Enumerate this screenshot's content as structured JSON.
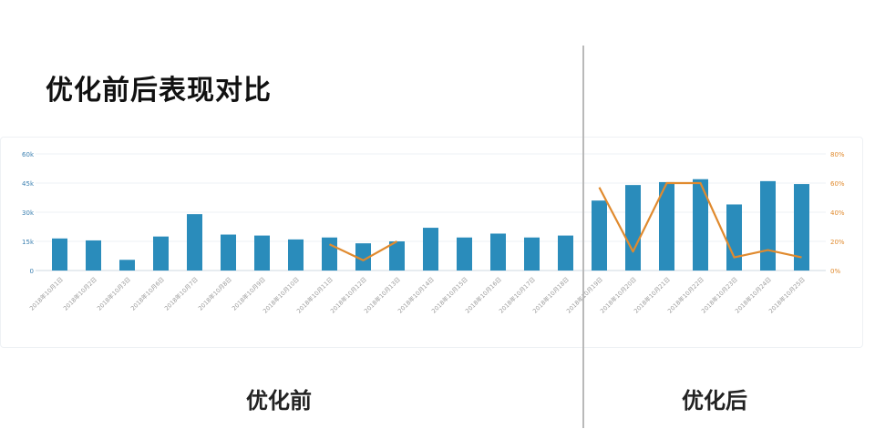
{
  "page": {
    "title": "优化前后表现对比",
    "label_before": "优化前",
    "label_after": "优化后"
  },
  "colors": {
    "bar": "#2a8cbb",
    "line": "#e08a2e",
    "left_axis_text": "#3a7fb0",
    "right_axis_text": "#e08a2e",
    "grid": "#eef1f4",
    "tick_text": "#9a9a9a"
  },
  "chart_data": {
    "type": "bar",
    "categories": [
      "2018年10月1日",
      "2018年10月2日",
      "2018年10月3日",
      "2018年10月6日",
      "2018年10月7日",
      "2018年10月8日",
      "2018年10月9日",
      "2018年10月10日",
      "2018年10月11日",
      "2018年10月12日",
      "2018年10月13日",
      "2018年10月14日",
      "2018年10月15日",
      "2018年10月16日",
      "2018年10月17日",
      "2018年10月18日",
      "2018年10月19日",
      "2018年10月20日",
      "2018年10月21日",
      "2018年10月22日",
      "2018年10月23日",
      "2018年10月24日",
      "2018年10月25日"
    ],
    "series": [
      {
        "type": "bar",
        "axis": "left",
        "values": [
          16500,
          15500,
          5500,
          17500,
          29000,
          18500,
          18000,
          16000,
          17000,
          14000,
          15000,
          22000,
          17000,
          19000,
          17000,
          18000,
          36000,
          44000,
          45500,
          47000,
          34000,
          46000,
          44500
        ]
      },
      {
        "type": "line",
        "axis": "right",
        "values": [
          null,
          null,
          null,
          null,
          null,
          null,
          null,
          null,
          18,
          7,
          20,
          null,
          null,
          null,
          null,
          null,
          57,
          13,
          60,
          60,
          9,
          14,
          9
        ]
      }
    ],
    "left_axis": {
      "ticks": [
        "0",
        "15k",
        "30k",
        "45k",
        "60k"
      ],
      "ylim": [
        0,
        60000
      ]
    },
    "right_axis": {
      "ticks": [
        "0%",
        "20%",
        "40%",
        "60%",
        "80%"
      ],
      "ylim": [
        0,
        80
      ]
    },
    "grid": true
  }
}
